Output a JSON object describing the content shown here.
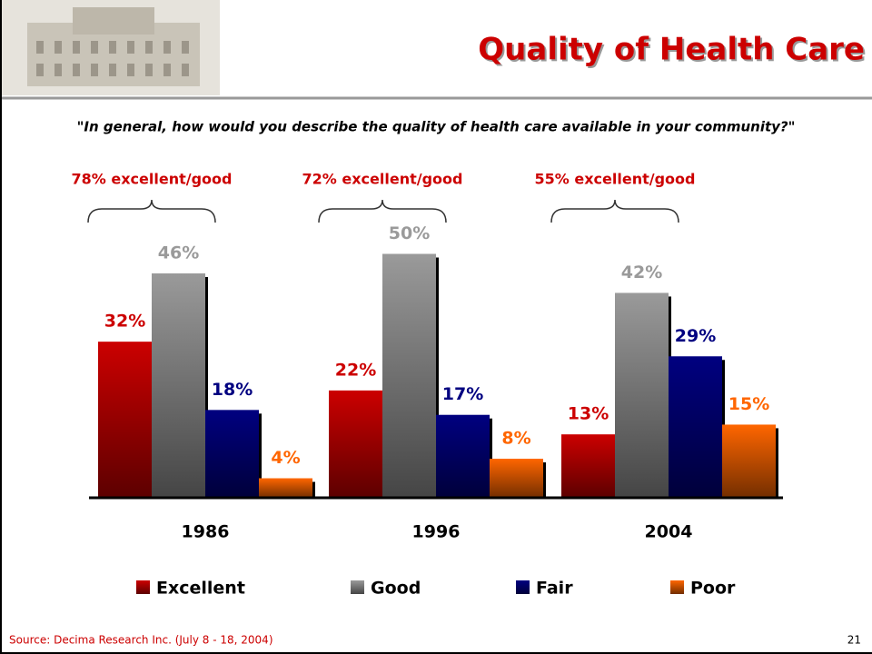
{
  "chart_data": {
    "type": "bar",
    "title": "Quality of Health Care",
    "subtitle": "\"In general, how would you describe the quality of health care available in your community?\"",
    "categories": [
      "1986",
      "1996",
      "2004"
    ],
    "series": [
      {
        "name": "Excellent",
        "color": "#cc0000",
        "values": [
          32,
          22,
          13
        ],
        "value_labels": [
          "32%",
          "22%",
          "13%"
        ]
      },
      {
        "name": "Good",
        "color": "#9a9a9a",
        "values": [
          46,
          50,
          42
        ],
        "value_labels": [
          "46%",
          "50%",
          "42%"
        ]
      },
      {
        "name": "Fair",
        "color": "#000080",
        "values": [
          18,
          17,
          29
        ],
        "value_labels": [
          "18%",
          "17%",
          "29%"
        ]
      },
      {
        "name": "Poor",
        "color": "#ff6600",
        "values": [
          4,
          8,
          15
        ],
        "value_labels": [
          "4%",
          "8%",
          "15%"
        ]
      }
    ],
    "annotations": [
      "78% excellent/good",
      "72% excellent/good",
      "55% excellent/good"
    ],
    "source": "Source: Decima Research Inc. (July 8 - 18, 2004)",
    "page_number": "21"
  }
}
